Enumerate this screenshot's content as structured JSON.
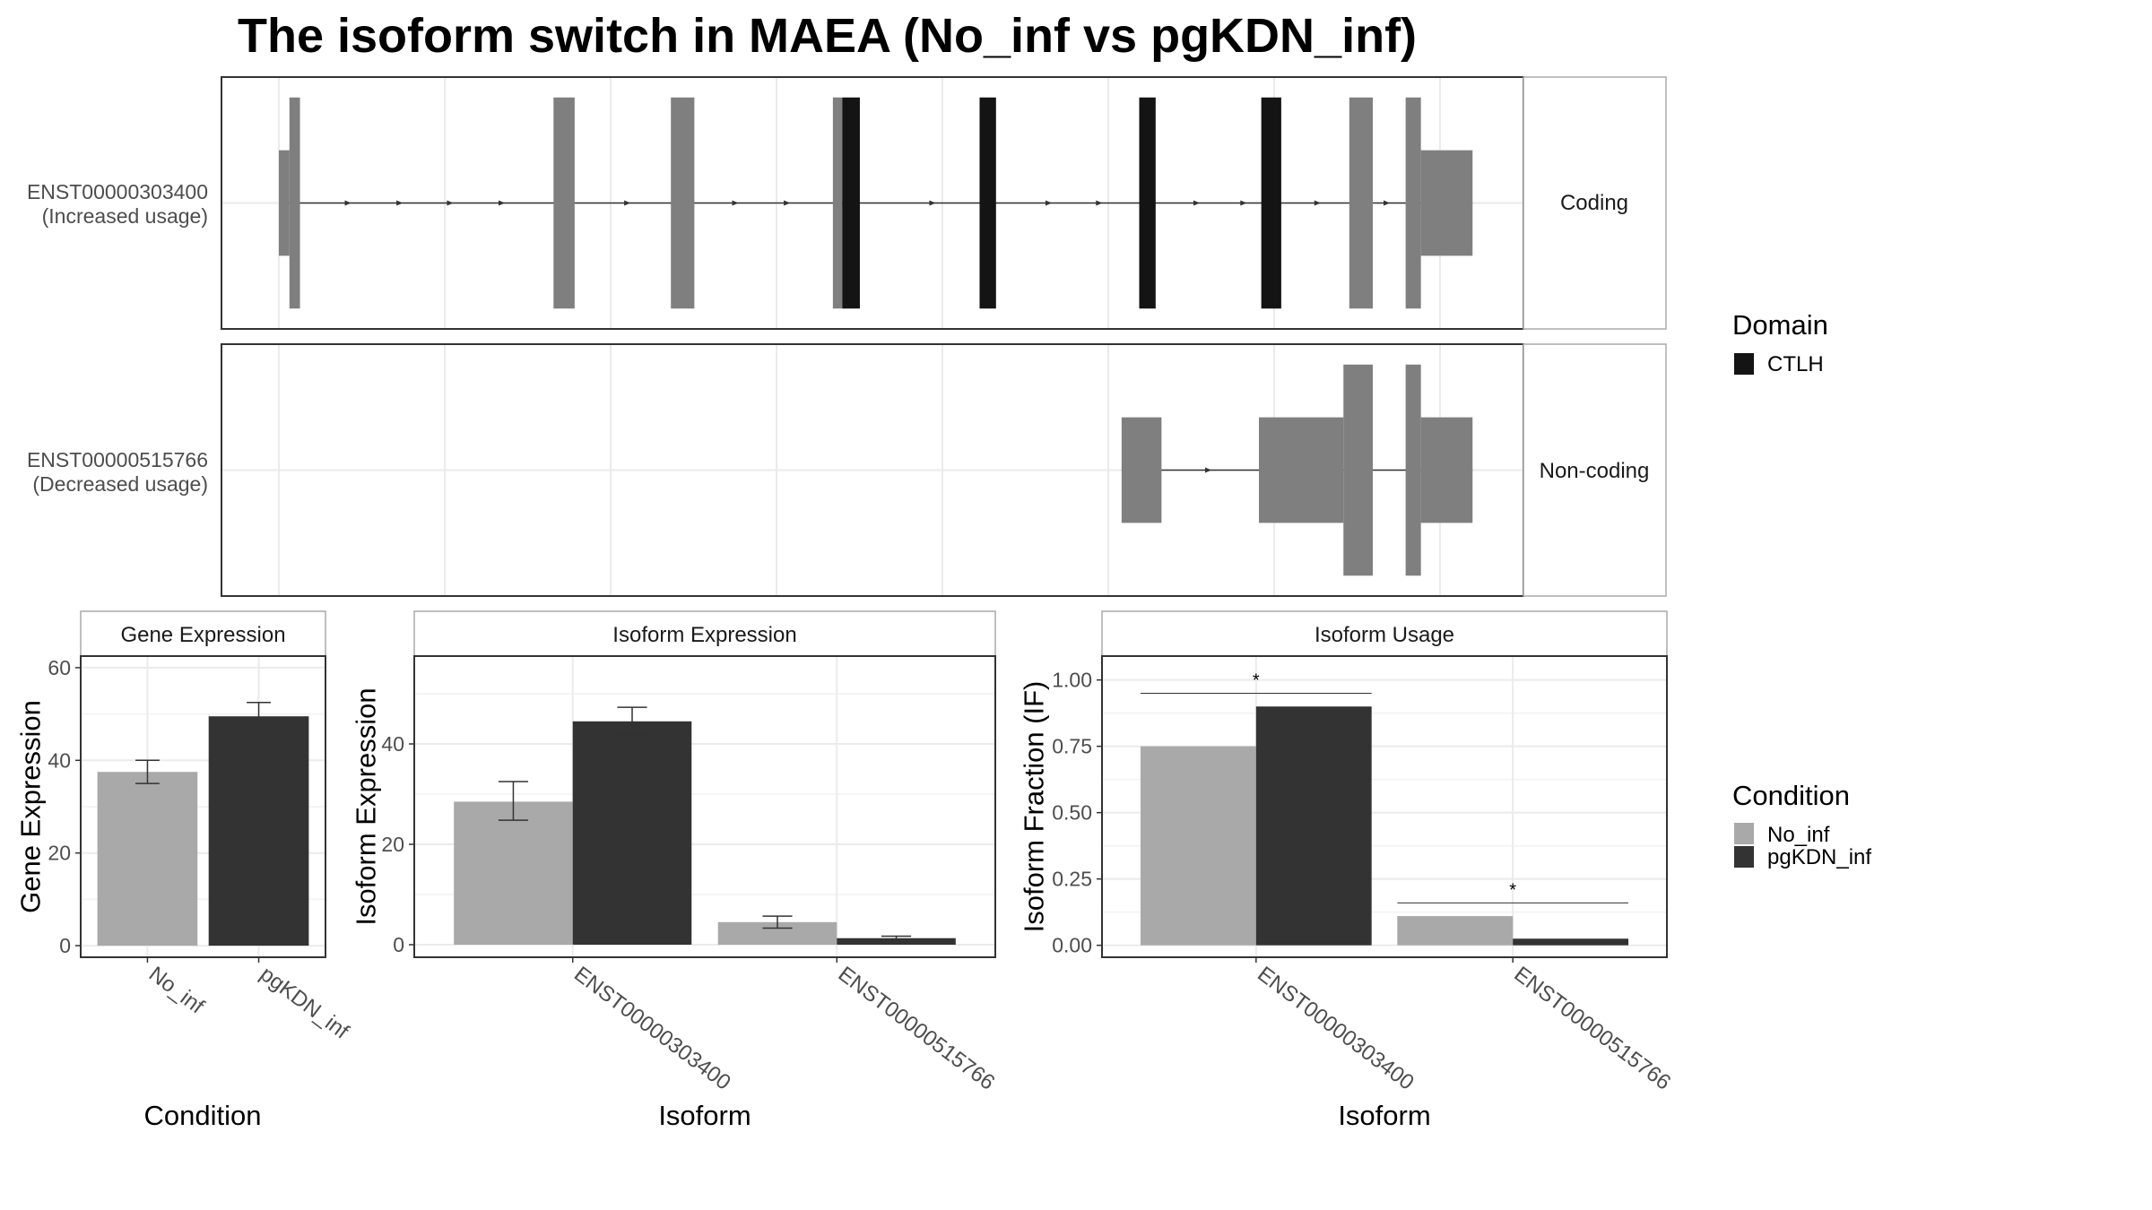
{
  "title": "The isoform switch in MAEA (No_inf vs pgKDN_inf)",
  "colors": {
    "exon": "#7f7f7f",
    "domain": "#141414",
    "no_inf": "#a9a9a9",
    "pgkdn_inf": "#333333",
    "grid": "#ebebeb",
    "panel_border": "#333333",
    "strip_border": "#aaaaaa"
  },
  "structure": {
    "isoforms": [
      {
        "id_label": "ENST00000303400",
        "usage_label": "(Increased usage)",
        "facet": "Coding",
        "exons": [
          {
            "start": 0.0,
            "end": 0.009,
            "half": 0.46
          },
          {
            "start": 0.009,
            "end": 0.018,
            "half": 0.92
          },
          {
            "start": 0.234,
            "end": 0.252,
            "half": 0.92
          },
          {
            "start": 0.334,
            "end": 0.354,
            "half": 0.92
          },
          {
            "start": 0.472,
            "end": 0.48,
            "half": 0.92
          },
          {
            "start": 0.48,
            "end": 0.495,
            "half": 0.92,
            "domain": true
          },
          {
            "start": 0.597,
            "end": 0.611,
            "half": 0.92,
            "domain": true
          },
          {
            "start": 0.733,
            "end": 0.747,
            "half": 0.92,
            "domain": true
          },
          {
            "start": 0.837,
            "end": 0.854,
            "half": 0.92,
            "domain": true
          },
          {
            "start": 0.912,
            "end": 0.932,
            "half": 0.92
          },
          {
            "start": 0.96,
            "end": 0.973,
            "half": 0.92
          },
          {
            "start": 0.973,
            "end": 1.017,
            "half": 0.46
          }
        ],
        "arrows": [
          0.06,
          0.104,
          0.147,
          0.191,
          0.298,
          0.39,
          0.434,
          0.558,
          0.657,
          0.7,
          0.783,
          0.823,
          0.886,
          0.945
        ]
      },
      {
        "id_label": "ENST00000515766",
        "usage_label": "(Decreased usage)",
        "facet": "Non-coding",
        "exons": [
          {
            "start": 0.718,
            "end": 0.752,
            "half": 0.46
          },
          {
            "start": 0.835,
            "end": 0.907,
            "half": 0.46
          },
          {
            "start": 0.907,
            "end": 0.932,
            "half": 0.92
          },
          {
            "start": 0.96,
            "end": 0.973,
            "half": 0.92
          },
          {
            "start": 0.973,
            "end": 1.017,
            "half": 0.46
          }
        ],
        "arrows": [
          0.793
        ]
      }
    ]
  },
  "legend_domain": {
    "title": "Domain",
    "items": [
      {
        "label": "CTLH",
        "color": "#141414"
      }
    ]
  },
  "legend_condition": {
    "title": "Condition",
    "items": [
      {
        "label": "No_inf",
        "color": "#a9a9a9"
      },
      {
        "label": "pgKDN_inf",
        "color": "#333333"
      }
    ]
  },
  "chart_data": [
    {
      "type": "bar",
      "strip": "Gene Expression",
      "xlabel": "Condition",
      "ylabel": "Gene Expression",
      "categories": [
        "No_inf",
        "pgKDN_inf"
      ],
      "values": [
        37.5,
        49.5
      ],
      "err_low": [
        35.0,
        46.5
      ],
      "err_high": [
        40.0,
        52.5
      ],
      "ylim": [
        -2.5,
        62.5
      ],
      "yticks": [
        0,
        20,
        40,
        60
      ],
      "ytick_labels": [
        "0",
        "20",
        "40",
        "60"
      ]
    },
    {
      "type": "bar",
      "strip": "Isoform Expression",
      "xlabel": "Isoform",
      "ylabel": "Isoform Expression",
      "categories": [
        "ENST00000303400",
        "ENST00000515766"
      ],
      "series": [
        {
          "name": "No_inf",
          "values": [
            28.5,
            4.5
          ],
          "err_low": [
            24.8,
            3.3
          ],
          "err_high": [
            32.5,
            5.7
          ]
        },
        {
          "name": "pgKDN_inf",
          "values": [
            44.5,
            1.3
          ],
          "err_low": [
            41.8,
            0.9
          ],
          "err_high": [
            47.3,
            1.7
          ]
        }
      ],
      "ylim": [
        -2.5,
        57.5
      ],
      "yticks": [
        0,
        20,
        40
      ],
      "ytick_labels": [
        "0",
        "20",
        "40"
      ]
    },
    {
      "type": "bar",
      "strip": "Isoform Usage",
      "xlabel": "Isoform",
      "ylabel": "Isoform Fraction (IF)",
      "categories": [
        "ENST00000303400",
        "ENST00000515766"
      ],
      "series": [
        {
          "name": "No_inf",
          "values": [
            0.75,
            0.11
          ]
        },
        {
          "name": "pgKDN_inf",
          "values": [
            0.9,
            0.025
          ]
        }
      ],
      "significance": [
        {
          "label": "*",
          "y": 0.95
        },
        {
          "label": "*",
          "y": 0.16
        }
      ],
      "ylim": [
        -0.045,
        1.09
      ],
      "yticks": [
        0,
        0.25,
        0.5,
        0.75,
        1.0
      ],
      "ytick_labels": [
        "0.00",
        "0.25",
        "0.50",
        "0.75",
        "1.00"
      ]
    }
  ]
}
